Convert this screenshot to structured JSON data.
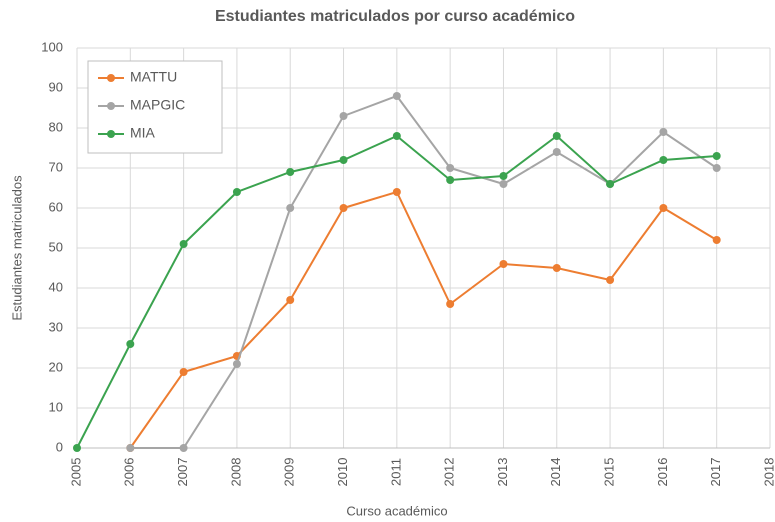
{
  "chart_data": {
    "type": "line",
    "title": "Estudiantes matriculados por curso académico",
    "x_label": "Curso académico",
    "y_label": "Estudiantes matriculados",
    "x": [
      2005,
      2006,
      2007,
      2008,
      2009,
      2010,
      2011,
      2012,
      2013,
      2014,
      2015,
      2016,
      2017
    ],
    "series": [
      {
        "name": "MATTU",
        "color": "#ed7d31",
        "values": [
          null,
          0,
          19,
          23,
          37,
          60,
          64,
          36,
          46,
          45,
          42,
          60,
          52
        ]
      },
      {
        "name": "MAPGIC",
        "color": "#a5a5a5",
        "values": [
          null,
          0,
          0,
          21,
          60,
          83,
          88,
          70,
          66,
          74,
          66,
          79,
          70
        ]
      },
      {
        "name": "MIA",
        "color": "#3ba34f",
        "values": [
          0,
          26,
          51,
          64,
          69,
          72,
          78,
          67,
          68,
          78,
          66,
          72,
          73
        ]
      }
    ],
    "xlim": [
      2005,
      2018
    ],
    "xticks": [
      2005,
      2006,
      2007,
      2008,
      2009,
      2010,
      2011,
      2012,
      2013,
      2014,
      2015,
      2016,
      2017,
      2018
    ],
    "ylim": [
      0,
      100
    ],
    "yticks": [
      0,
      10,
      20,
      30,
      40,
      50,
      60,
      70,
      80,
      90,
      100
    ],
    "grid": true,
    "legend": "upper left"
  }
}
